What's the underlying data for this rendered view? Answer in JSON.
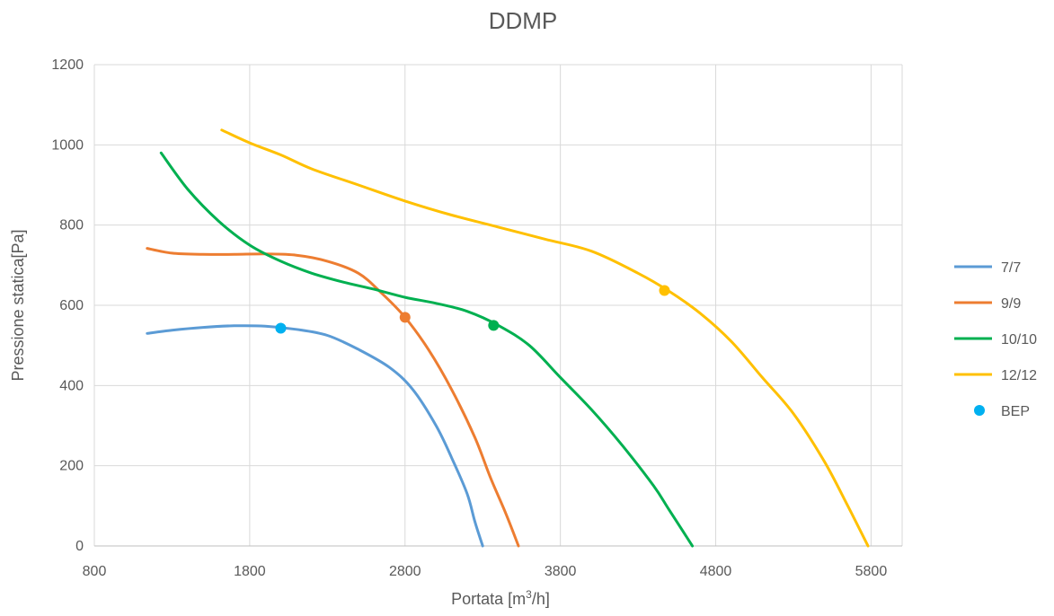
{
  "chart_data": {
    "type": "line",
    "title": "DDMP",
    "xlabel": "Portata [m³/h]",
    "xlabel_parts": {
      "pre": "Portata [m",
      "sup": "3",
      "post": "/h]"
    },
    "ylabel": "Pressione statica[Pa]",
    "xlim": [
      800,
      6000
    ],
    "ylim": [
      0,
      1200
    ],
    "x_ticks": [
      800,
      1800,
      2800,
      3800,
      4800,
      5800
    ],
    "y_ticks": [
      0,
      200,
      400,
      600,
      800,
      1000,
      1200
    ],
    "grid": true,
    "legend": "right",
    "series": [
      {
        "name": "7/7",
        "color": "#5B9BD5",
        "points": [
          [
            1140,
            530
          ],
          [
            1300,
            538
          ],
          [
            1500,
            545
          ],
          [
            1700,
            549
          ],
          [
            1900,
            548
          ],
          [
            2100,
            540
          ],
          [
            2300,
            525
          ],
          [
            2500,
            490
          ],
          [
            2700,
            445
          ],
          [
            2850,
            390
          ],
          [
            3000,
            300
          ],
          [
            3100,
            220
          ],
          [
            3200,
            130
          ],
          [
            3250,
            60
          ],
          [
            3300,
            0
          ]
        ]
      },
      {
        "name": "9/9",
        "color": "#ED7D31",
        "points": [
          [
            1140,
            742
          ],
          [
            1300,
            730
          ],
          [
            1500,
            727
          ],
          [
            1700,
            727
          ],
          [
            1900,
            728
          ],
          [
            2100,
            725
          ],
          [
            2300,
            710
          ],
          [
            2500,
            680
          ],
          [
            2650,
            630
          ],
          [
            2800,
            570
          ],
          [
            2950,
            490
          ],
          [
            3100,
            390
          ],
          [
            3250,
            270
          ],
          [
            3350,
            170
          ],
          [
            3450,
            80
          ],
          [
            3530,
            0
          ]
        ]
      },
      {
        "name": "10/10",
        "color": "#00B050",
        "points": [
          [
            1230,
            980
          ],
          [
            1400,
            890
          ],
          [
            1600,
            810
          ],
          [
            1800,
            750
          ],
          [
            2000,
            710
          ],
          [
            2200,
            680
          ],
          [
            2400,
            658
          ],
          [
            2600,
            640
          ],
          [
            2800,
            620
          ],
          [
            3000,
            605
          ],
          [
            3200,
            585
          ],
          [
            3400,
            550
          ],
          [
            3600,
            500
          ],
          [
            3800,
            420
          ],
          [
            4000,
            340
          ],
          [
            4200,
            250
          ],
          [
            4400,
            150
          ],
          [
            4500,
            90
          ],
          [
            4650,
            0
          ]
        ]
      },
      {
        "name": "12/12",
        "color": "#FFC000",
        "points": [
          [
            1620,
            1037
          ],
          [
            1800,
            1005
          ],
          [
            2000,
            975
          ],
          [
            2200,
            940
          ],
          [
            2500,
            900
          ],
          [
            2800,
            860
          ],
          [
            3100,
            825
          ],
          [
            3400,
            795
          ],
          [
            3700,
            765
          ],
          [
            4000,
            735
          ],
          [
            4300,
            680
          ],
          [
            4500,
            635
          ],
          [
            4700,
            580
          ],
          [
            4900,
            510
          ],
          [
            5100,
            420
          ],
          [
            5300,
            330
          ],
          [
            5500,
            210
          ],
          [
            5650,
            100
          ],
          [
            5780,
            0
          ]
        ]
      },
      {
        "name": "BEP",
        "color": "#00B0F0",
        "marker_only": true,
        "points": [
          [
            2000,
            543
          ]
        ]
      }
    ],
    "operating_points": [
      {
        "series": "7/7",
        "x": 2000,
        "y": 543,
        "color": "#00B0F0"
      },
      {
        "series": "9/9",
        "x": 2800,
        "y": 570,
        "color": "#ED7D31"
      },
      {
        "series": "10/10",
        "x": 3370,
        "y": 550,
        "color": "#00B050"
      },
      {
        "series": "12/12",
        "x": 4470,
        "y": 637,
        "color": "#FFC000"
      }
    ]
  }
}
